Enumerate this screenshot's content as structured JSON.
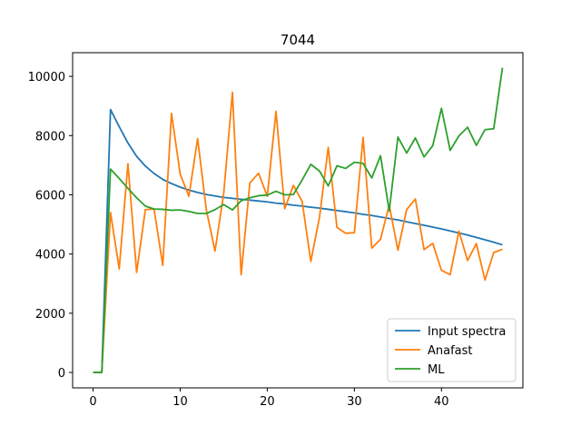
{
  "chart_data": {
    "type": "line",
    "title": "7044",
    "xlabel": "",
    "ylabel": "",
    "xlim": [
      -2.35,
      49.35
    ],
    "ylim": [
      -520,
      10800
    ],
    "xticks": [
      0,
      10,
      20,
      30,
      40
    ],
    "yticks": [
      0,
      2000,
      4000,
      6000,
      8000,
      10000
    ],
    "grid": false,
    "legend_position": "lower-right",
    "x": [
      0,
      1,
      2,
      3,
      4,
      5,
      6,
      7,
      8,
      9,
      10,
      11,
      12,
      13,
      14,
      15,
      16,
      17,
      18,
      19,
      20,
      21,
      22,
      23,
      24,
      25,
      26,
      27,
      28,
      29,
      30,
      31,
      32,
      33,
      34,
      35,
      36,
      37,
      38,
      39,
      40,
      41,
      42,
      43,
      44,
      45,
      46,
      47
    ],
    "series": [
      {
        "name": "Input spectra",
        "color": "#1f77b4",
        "values": [
          0,
          0,
          8880,
          8300,
          7750,
          7300,
          6970,
          6720,
          6520,
          6380,
          6260,
          6160,
          6080,
          6010,
          5960,
          5910,
          5880,
          5850,
          5820,
          5790,
          5760,
          5720,
          5690,
          5650,
          5620,
          5580,
          5550,
          5510,
          5470,
          5430,
          5390,
          5340,
          5300,
          5250,
          5200,
          5150,
          5090,
          5030,
          4970,
          4910,
          4850,
          4780,
          4710,
          4640,
          4560,
          4480,
          4400,
          4310
        ]
      },
      {
        "name": "Anafast",
        "color": "#ff7f0e",
        "values": [
          0,
          0,
          5400,
          3500,
          7050,
          3380,
          5500,
          5520,
          3620,
          8750,
          6700,
          5950,
          7900,
          5500,
          4100,
          6050,
          9460,
          3300,
          6400,
          6730,
          5950,
          8820,
          5530,
          6320,
          5780,
          3750,
          5250,
          7600,
          4900,
          4700,
          4720,
          7940,
          4200,
          4500,
          5650,
          4130,
          5500,
          5860,
          4150,
          4360,
          3450,
          3300,
          4770,
          3780,
          4350,
          3120,
          4050,
          4160
        ]
      },
      {
        "name": "ML",
        "color": "#2ca02c",
        "values": [
          0,
          0,
          6870,
          6550,
          6220,
          5900,
          5620,
          5520,
          5510,
          5480,
          5490,
          5440,
          5370,
          5370,
          5500,
          5670,
          5490,
          5800,
          5900,
          5970,
          5990,
          6120,
          6000,
          6010,
          6500,
          7030,
          6800,
          6300,
          6980,
          6890,
          7100,
          7060,
          6570,
          7320,
          5460,
          7950,
          7410,
          7920,
          7280,
          7660,
          8920,
          7500,
          7990,
          8280,
          7670,
          8200,
          8230,
          10290
        ]
      }
    ]
  }
}
